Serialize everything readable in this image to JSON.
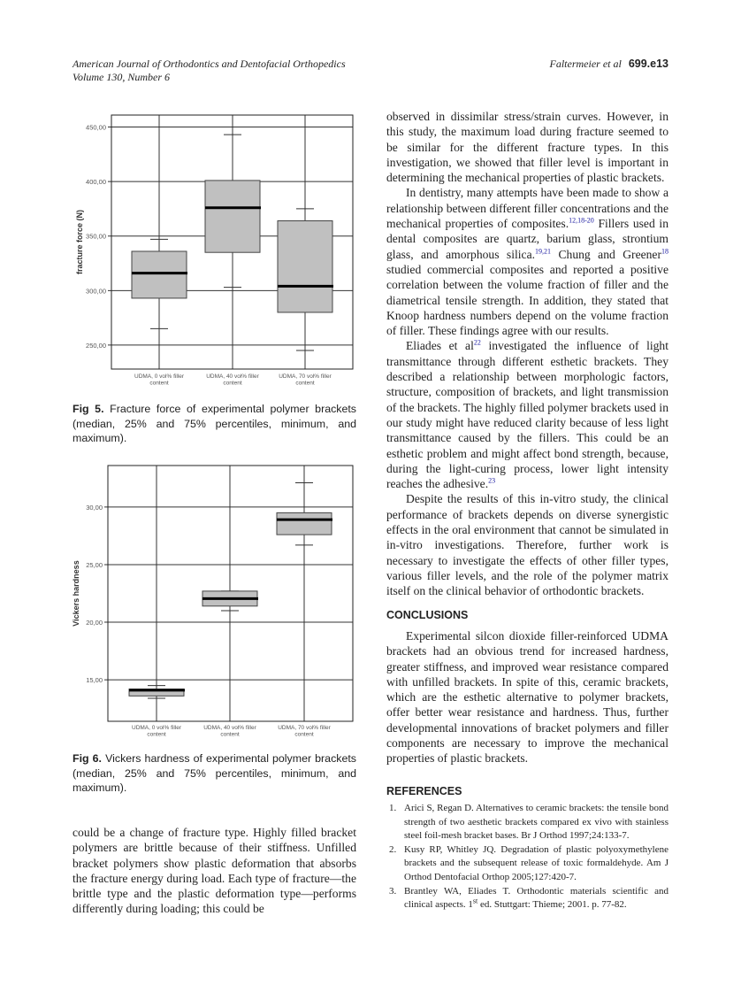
{
  "header": {
    "journal": "American Journal of Orthodontics and Dentofacial Orthopedics",
    "volume": "Volume 130, Number 6",
    "authors": "Faltermeier et al",
    "page": "699.e13"
  },
  "right_paragraphs": [
    [
      {
        "t": "observed in dissimilar stress/strain curves. However, in this study, the maximum load during fracture seemed to be similar for the different fracture types. In this investigation, we showed that filler level is important in determining the mechanical properties of plastic brackets."
      }
    ],
    [
      {
        "t": "In dentistry, many attempts have been made to show a relationship between different filler concentrations and the mechanical properties of composites."
      },
      {
        "sup": "12,18-20"
      },
      {
        "t": " Fillers used in dental composites are quartz, barium glass, strontium glass, and amorphous silica."
      },
      {
        "sup": "19,21"
      },
      {
        "t": " Chung and Greener"
      },
      {
        "sup": "18"
      },
      {
        "t": " studied commercial composites and reported a positive correlation between the volume fraction of filler and the diametrical tensile strength. In addition, they stated that Knoop hardness numbers depend on the volume fraction of filler. These findings agree with our results."
      }
    ],
    [
      {
        "t": "Eliades et al"
      },
      {
        "sup": "22"
      },
      {
        "t": " investigated the influence of light transmittance through different esthetic brackets. They described a relationship between morphologic factors, structure, composition of brackets, and light transmission of the brackets. The highly filled polymer brackets used in our study might have reduced clarity because of less light transmittance caused by the fillers. This could be an esthetic problem and might affect bond strength, because, during the light-curing process, lower light intensity reaches the adhesive."
      },
      {
        "sup": "23"
      }
    ],
    [
      {
        "t": "Despite the results of this in-vitro study, the clinical performance of brackets depends on diverse synergistic effects in the oral environment that cannot be simulated in in-vitro investigations. Therefore, further work is necessary to investigate the effects of other filler types, various filler levels, and the role of the polymer matrix itself on the clinical behavior of orthodontic brackets."
      }
    ]
  ],
  "conclusions": {
    "heading": "CONCLUSIONS",
    "text": "Experimental silcon dioxide filler-reinforced UDMA brackets had an obvious trend for increased hardness, greater stiffness, and improved wear resistance compared with unfilled brackets. In spite of this, ceramic brackets, which are the esthetic alternative to polymer brackets, offer better wear resistance and hardness. Thus, further developmental innovations of bracket polymers and filler components are necessary to improve the mechanical properties of plastic brackets."
  },
  "left_paragraph": "could be a change of fracture type. Highly filled bracket polymers are brittle because of their stiffness. Unfilled bracket polymers show plastic deformation that absorbs the fracture energy during load. Each type of fracture—the brittle type and the plastic deformation type—performs differently during loading; this could be",
  "references": {
    "heading": "REFERENCES",
    "items": [
      {
        "n": "1.",
        "text": "Arici S, Regan D. Alternatives to ceramic brackets: the tensile bond strength of two aesthetic brackets compared ex vivo with stainless steel foil-mesh bracket bases. Br J Orthod 1997;24:133-7."
      },
      {
        "n": "2.",
        "text": "Kusy RP, Whitley JQ. Degradation of plastic polyoxymethylene brackets and the subsequent release of toxic formaldehyde. Am J Orthod Dentofacial Orthop 2005;127:420-7."
      },
      {
        "n": "3.",
        "pre": "Brantley WA, Eliades T. Orthodontic materials scientific and clinical aspects. 1",
        "sup": "st",
        "post": " ed. Stuttgart: Thieme; 2001. p. 77-82."
      }
    ]
  },
  "fig5": {
    "label": "Fig 5.",
    "caption": "Fracture force of experimental polymer brackets (median, 25% and 75% percentiles, minimum, and maximum)."
  },
  "fig6": {
    "label": "Fig 6.",
    "caption": "Vickers hardness of experimental polymer brackets (median, 25% and 75% percentiles, minimum, and maximum)."
  },
  "chart_data": [
    {
      "type": "box",
      "ylabel": "fracture force (N)",
      "ylim": [
        228,
        461
      ],
      "yticks": [
        250,
        300,
        350,
        400,
        450
      ],
      "ytick_labels": [
        "250,00",
        "300,00",
        "350,00",
        "400,00",
        "450,00"
      ],
      "grid": true,
      "categories": [
        [
          "UDMA, 0 vol% filler",
          "content"
        ],
        [
          "UDMA, 40 vol% filler",
          "content"
        ],
        [
          "UDMA, 70 vol% filler",
          "content"
        ]
      ],
      "boxes": [
        {
          "min": 265,
          "q1": 293,
          "median": 316,
          "q3": 336,
          "max": 347
        },
        {
          "min": 303,
          "q1": 335,
          "median": 376,
          "q3": 401,
          "max": 443
        },
        {
          "min": 245,
          "q1": 280,
          "median": 304,
          "q3": 364,
          "max": 375
        }
      ],
      "colors": {
        "box": "#c0c0c0",
        "median": "#000000"
      }
    },
    {
      "type": "box",
      "ylabel": "Vickers hardness",
      "ylim": [
        11.4,
        33.6
      ],
      "yticks": [
        15,
        20,
        25,
        30
      ],
      "ytick_labels": [
        "15,00",
        "20,00",
        "25,00",
        "30,00"
      ],
      "grid": true,
      "categories": [
        [
          "UDMA, 0 vol% filler",
          "content"
        ],
        [
          "UDMA, 40 vol% filler",
          "content"
        ],
        [
          "UDMA, 70 vol% filler",
          "content"
        ]
      ],
      "boxes": [
        {
          "min": 13.4,
          "q1": 13.6,
          "median": 14.1,
          "q3": 14.2,
          "max": 14.5
        },
        {
          "min": 21.0,
          "q1": 21.4,
          "median": 22.05,
          "q3": 22.7,
          "max": 22.7
        },
        {
          "min": 26.7,
          "q1": 27.6,
          "median": 28.9,
          "q3": 29.5,
          "max": 32.1
        }
      ],
      "colors": {
        "box": "#c0c0c0",
        "median": "#000000"
      }
    }
  ]
}
